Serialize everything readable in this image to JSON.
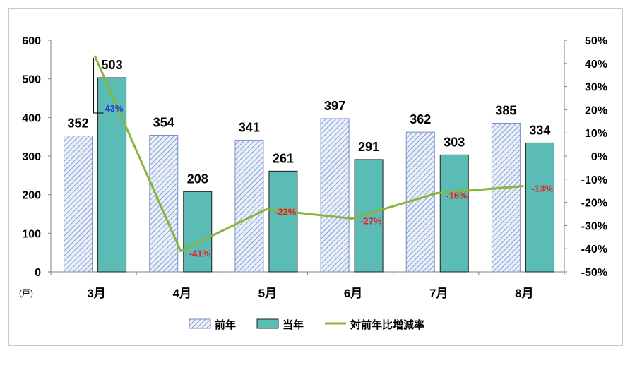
{
  "chart_data": {
    "type": "bar",
    "categories": [
      "3月",
      "4月",
      "5月",
      "6月",
      "7月",
      "8月"
    ],
    "series": [
      {
        "name": "前年",
        "type": "bar",
        "axis": "left",
        "color": "#9fb4d8",
        "pattern": "diagonal-hatch",
        "values": [
          352,
          354,
          341,
          397,
          362,
          385
        ]
      },
      {
        "name": "当年",
        "type": "bar",
        "axis": "left",
        "color": "#5bbcb5",
        "values": [
          503,
          208,
          261,
          291,
          303,
          334
        ]
      },
      {
        "name": "対前年比増減率",
        "type": "line",
        "axis": "right",
        "color": "#8ab43a",
        "values": [
          43,
          -41,
          -23,
          -27,
          -16,
          -13
        ],
        "labels": [
          "43%",
          "-41%",
          "-23%",
          "-27%",
          "-16%",
          "-13%"
        ],
        "label_colors": [
          "#1f3fd6",
          "#e81d1d",
          "#e81d1d",
          "#e81d1d",
          "#e81d1d",
          "#e81d1d"
        ]
      }
    ],
    "ylim": [
      0,
      600
    ],
    "yticks": [
      "0",
      "100",
      "200",
      "300",
      "400",
      "500",
      "600"
    ],
    "y2lim": [
      -50,
      50
    ],
    "y2ticks": [
      "-50%",
      "-40%",
      "-30%",
      "-20%",
      "-10%",
      "0%",
      "10%",
      "20%",
      "30%",
      "40%",
      "50%"
    ],
    "yunit": "(戸)",
    "legend_position": "bottom",
    "grid": false
  }
}
